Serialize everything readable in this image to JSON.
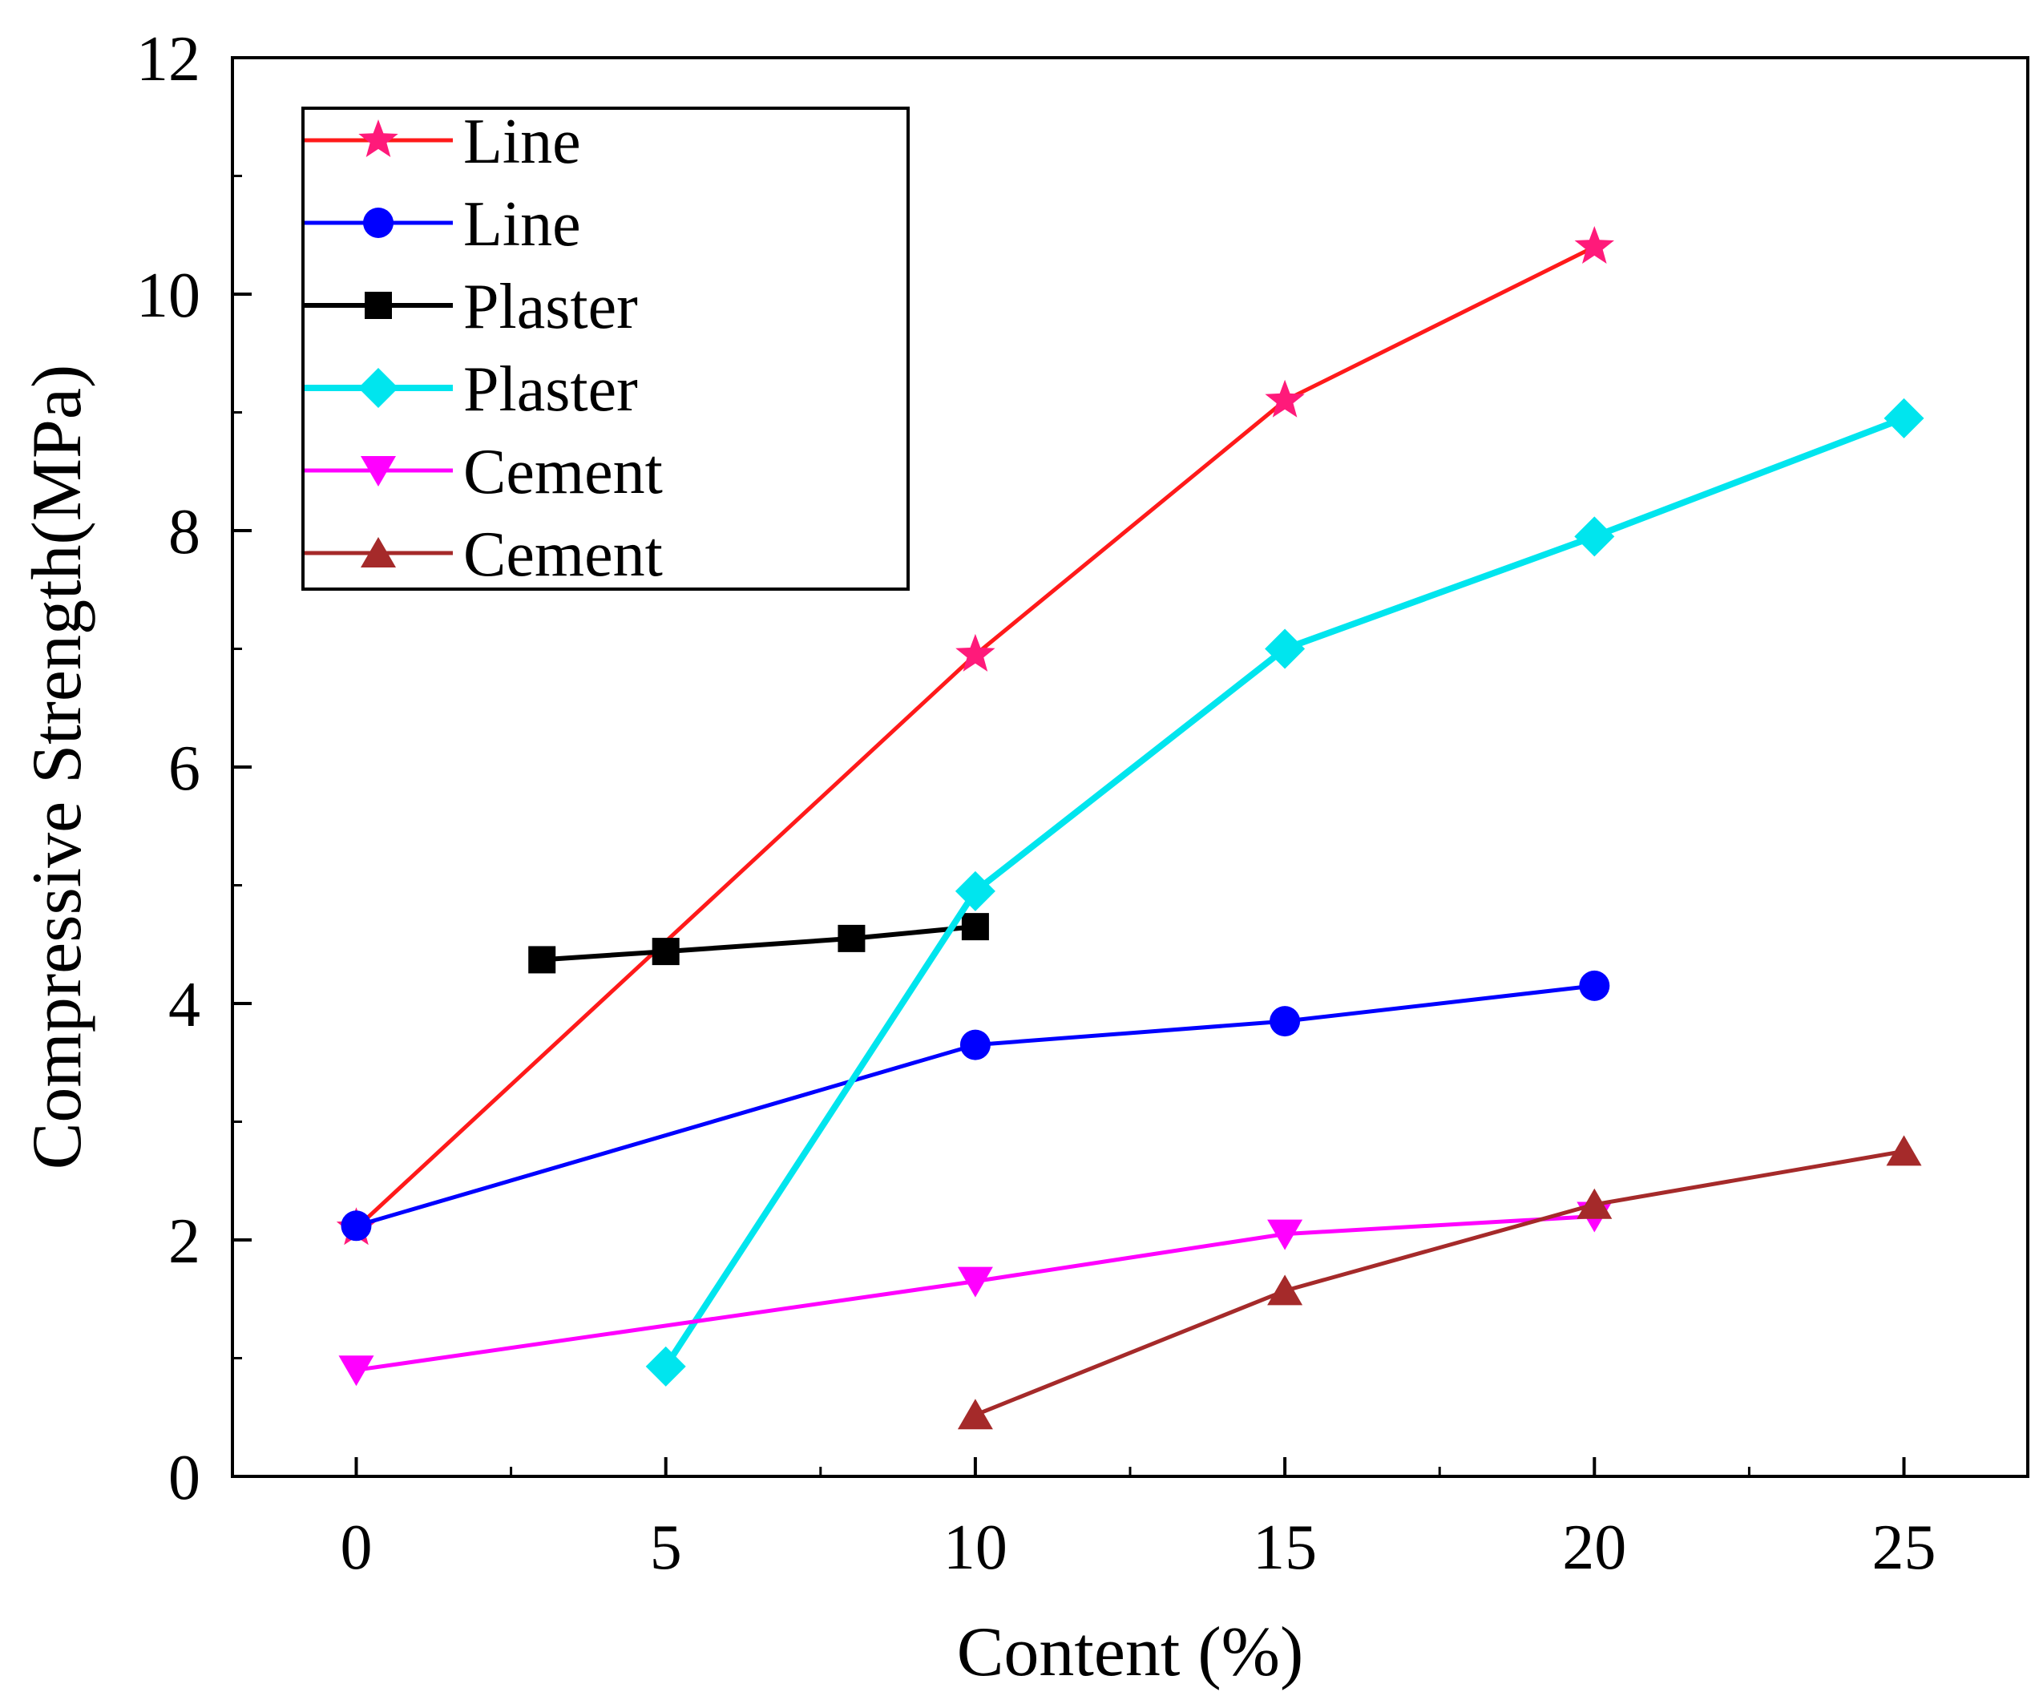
{
  "chart_data": {
    "type": "line",
    "title": "",
    "xlabel": "Content (%)",
    "ylabel": "Compressive Strength(MPa)",
    "xlim": [
      -2,
      27
    ],
    "ylim": [
      0,
      12
    ],
    "x_ticks": [
      0,
      5,
      10,
      15,
      20,
      25
    ],
    "x_tick_labels": [
      "0",
      "5",
      "10",
      "15",
      "20",
      "25"
    ],
    "y_ticks": [
      0,
      2,
      4,
      6,
      8,
      10,
      12
    ],
    "y_tick_labels": [
      "0",
      "2",
      "4",
      "6",
      "8",
      "10",
      "12"
    ],
    "grid": false,
    "legend_position": "top-left",
    "series": [
      {
        "name": "Line",
        "color": "#ff1a1a",
        "marker": "star",
        "marker_color": "#ff1a7a",
        "x": [
          0,
          10,
          15,
          20
        ],
        "y": [
          2.1,
          6.95,
          9.1,
          10.4
        ]
      },
      {
        "name": "Line",
        "color": "#0000ff",
        "marker": "circle",
        "marker_color": "#0000ff",
        "x": [
          0,
          10,
          15,
          20
        ],
        "y": [
          2.12,
          3.65,
          3.85,
          4.15
        ]
      },
      {
        "name": "Plaster",
        "color": "#000000",
        "marker": "square",
        "marker_color": "#000000",
        "x": [
          3,
          5,
          8,
          10
        ],
        "y": [
          4.37,
          4.44,
          4.55,
          4.65
        ]
      },
      {
        "name": "Plaster",
        "color": "#00e5ee",
        "marker": "diamond",
        "marker_color": "#00e5ee",
        "x": [
          5,
          10,
          15,
          20,
          25
        ],
        "y": [
          0.93,
          4.95,
          7.0,
          7.95,
          8.95
        ]
      },
      {
        "name": "Cement",
        "color": "#ff00ff",
        "marker": "triangle-down",
        "marker_color": "#ff00ff",
        "x": [
          0,
          10,
          15,
          20
        ],
        "y": [
          0.9,
          1.65,
          2.05,
          2.2
        ]
      },
      {
        "name": "Cement",
        "color": "#a52a2a",
        "marker": "triangle-up",
        "marker_color": "#a52a2a",
        "x": [
          10,
          15,
          20,
          25
        ],
        "y": [
          0.52,
          1.57,
          2.3,
          2.75
        ]
      }
    ]
  }
}
